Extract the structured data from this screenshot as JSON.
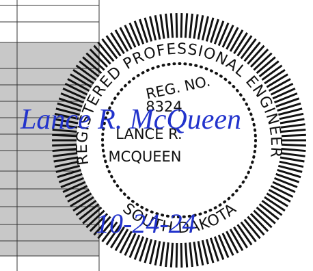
{
  "seal": {
    "outer_text": "REGISTERED PROFESSIONAL ENGINEER",
    "reg_label": "REG. NO.",
    "reg_number": "8324",
    "name_line1": "LANCE R.",
    "name_line2": "MCQUEEN",
    "state": "SOUTH DAKOTA"
  },
  "signature": "Lance R. McQueen",
  "date": "10-24-24"
}
